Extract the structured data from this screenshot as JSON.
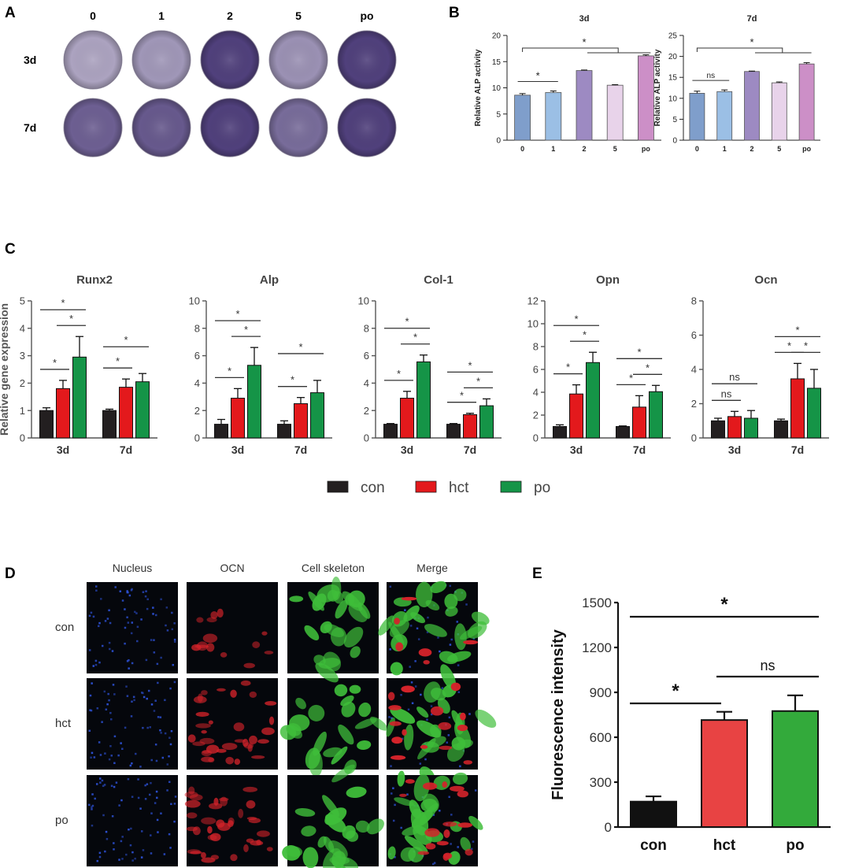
{
  "panel_labels": {
    "a": "A",
    "b": "B",
    "c": "C",
    "d": "D",
    "e": "E"
  },
  "colors": {
    "black": "#231f20",
    "red": "#e3191c",
    "green": "#159447",
    "stain_dark": "#4a3a78",
    "stain_light": "#bdb6cd",
    "b_bars": [
      "#7f9ecb",
      "#9bbfe5",
      "#9d8ac2",
      "#e8d3ea",
      "#cc8fc7"
    ],
    "e_bars": [
      "#111111",
      "#e84343",
      "#33aa3b"
    ],
    "nucleus": "#2c4fd0",
    "ocn": "#d3232a",
    "skeleton": "#3fbe3a"
  },
  "panel_a": {
    "columns": [
      "0",
      "1",
      "2",
      "5",
      "po"
    ],
    "rows": [
      "3d",
      "7d"
    ],
    "staining_levels": [
      [
        0.15,
        0.25,
        0.95,
        0.3,
        0.95
      ],
      [
        0.7,
        0.75,
        0.95,
        0.6,
        0.95
      ]
    ]
  },
  "panel_d": {
    "columns": [
      "Nucleus",
      "OCN",
      "Cell skeleton",
      "Merge"
    ],
    "rows": [
      "con",
      "hct",
      "po"
    ],
    "ocn_levels": [
      0.35,
      0.85,
      0.9
    ]
  },
  "chart_data": [
    {
      "id": "B-3d",
      "type": "bar",
      "title": "3d",
      "ylabel": "Relative ALP activity",
      "categories": [
        "0",
        "1",
        "2",
        "5",
        "po"
      ],
      "values": [
        8.6,
        9.1,
        13.3,
        10.5,
        16.1
      ],
      "errors": [
        0.3,
        0.3,
        0.1,
        0.1,
        0.2
      ],
      "ylim": [
        0,
        20
      ],
      "yticks": [
        0,
        5,
        10,
        15,
        20
      ],
      "annotations": [
        {
          "from": 0,
          "to": 1,
          "label": "*"
        },
        {
          "from": 0,
          "to": 4,
          "label": "*"
        }
      ]
    },
    {
      "id": "B-7d",
      "type": "bar",
      "title": "7d",
      "ylabel": "Relative ALP activity",
      "categories": [
        "0",
        "1",
        "2",
        "5",
        "po"
      ],
      "values": [
        11.2,
        11.6,
        16.4,
        13.7,
        18.2
      ],
      "errors": [
        0.5,
        0.4,
        0.1,
        0.2,
        0.3
      ],
      "ylim": [
        0,
        25
      ],
      "yticks": [
        0,
        5,
        10,
        15,
        20,
        25
      ],
      "annotations": [
        {
          "from": 0,
          "to": 1,
          "label": "ns"
        },
        {
          "from": 0,
          "to": 4,
          "label": "*"
        }
      ]
    },
    {
      "id": "C-Runx2",
      "type": "bar",
      "title": "Runx2",
      "ylabel": "Relative gene expression",
      "categories": [
        "3d",
        "7d"
      ],
      "series": [
        {
          "name": "con",
          "values": [
            1.0,
            1.0
          ],
          "errors": [
            0.1,
            0.05
          ]
        },
        {
          "name": "hct",
          "values": [
            1.8,
            1.85
          ],
          "errors": [
            0.3,
            0.3
          ]
        },
        {
          "name": "po",
          "values": [
            2.95,
            2.05
          ],
          "errors": [
            0.75,
            0.3
          ]
        }
      ],
      "ylim": [
        0,
        5
      ],
      "yticks": [
        0,
        1,
        2,
        3,
        4,
        5
      ],
      "annotations": [
        [
          0,
          0,
          1,
          "*"
        ],
        [
          0,
          0,
          2,
          "*"
        ],
        [
          0,
          1,
          2,
          "*"
        ],
        [
          1,
          0,
          1,
          "*"
        ],
        [
          1,
          0,
          2,
          "*"
        ]
      ]
    },
    {
      "id": "C-Alp",
      "type": "bar",
      "title": "Alp",
      "ylabel": "",
      "categories": [
        "3d",
        "7d"
      ],
      "series": [
        {
          "name": "con",
          "values": [
            1.0,
            1.0
          ],
          "errors": [
            0.35,
            0.25
          ]
        },
        {
          "name": "hct",
          "values": [
            2.9,
            2.5
          ],
          "errors": [
            0.7,
            0.45
          ]
        },
        {
          "name": "po",
          "values": [
            5.3,
            3.3
          ],
          "errors": [
            1.3,
            0.9
          ]
        }
      ],
      "ylim": [
        0,
        10
      ],
      "yticks": [
        0,
        2,
        4,
        6,
        8,
        10
      ],
      "annotations": [
        [
          0,
          0,
          1,
          "*"
        ],
        [
          0,
          0,
          2,
          "*"
        ],
        [
          0,
          1,
          2,
          "*"
        ],
        [
          1,
          0,
          1,
          "*"
        ],
        [
          1,
          0,
          2,
          "*"
        ]
      ]
    },
    {
      "id": "C-Col-1",
      "type": "bar",
      "title": "Col-1",
      "ylabel": "",
      "categories": [
        "3d",
        "7d"
      ],
      "series": [
        {
          "name": "con",
          "values": [
            1.0,
            1.0
          ],
          "errors": [
            0.05,
            0.05
          ]
        },
        {
          "name": "hct",
          "values": [
            2.9,
            1.7
          ],
          "errors": [
            0.5,
            0.1
          ]
        },
        {
          "name": "po",
          "values": [
            5.55,
            2.35
          ],
          "errors": [
            0.5,
            0.5
          ]
        }
      ],
      "ylim": [
        0,
        10
      ],
      "yticks": [
        0,
        2,
        4,
        6,
        8,
        10
      ],
      "annotations": [
        [
          0,
          0,
          1,
          "*"
        ],
        [
          0,
          0,
          2,
          "*"
        ],
        [
          0,
          1,
          2,
          "*"
        ],
        [
          1,
          0,
          1,
          "*"
        ],
        [
          1,
          0,
          2,
          "*"
        ],
        [
          1,
          1,
          2,
          "*"
        ]
      ]
    },
    {
      "id": "C-Opn",
      "type": "bar",
      "title": "Opn",
      "ylabel": "",
      "categories": [
        "3d",
        "7d"
      ],
      "series": [
        {
          "name": "con",
          "values": [
            1.0,
            1.0
          ],
          "errors": [
            0.15,
            0.05
          ]
        },
        {
          "name": "hct",
          "values": [
            3.85,
            2.7
          ],
          "errors": [
            0.8,
            1.0
          ]
        },
        {
          "name": "po",
          "values": [
            6.6,
            4.05
          ],
          "errors": [
            0.9,
            0.55
          ]
        }
      ],
      "ylim": [
        0,
        12
      ],
      "yticks": [
        0,
        2,
        4,
        6,
        8,
        10,
        12
      ],
      "annotations": [
        [
          0,
          0,
          1,
          "*"
        ],
        [
          0,
          0,
          2,
          "*"
        ],
        [
          0,
          1,
          2,
          "*"
        ],
        [
          1,
          0,
          1,
          "*"
        ],
        [
          1,
          0,
          2,
          "*"
        ],
        [
          1,
          1,
          2,
          "*"
        ]
      ]
    },
    {
      "id": "C-Ocn",
      "type": "bar",
      "title": "Ocn",
      "ylabel": "",
      "categories": [
        "3d",
        "7d"
      ],
      "series": [
        {
          "name": "con",
          "values": [
            1.0,
            1.0
          ],
          "errors": [
            0.15,
            0.1
          ]
        },
        {
          "name": "hct",
          "values": [
            1.25,
            3.45
          ],
          "errors": [
            0.3,
            0.9
          ]
        },
        {
          "name": "po",
          "values": [
            1.15,
            2.9
          ],
          "errors": [
            0.45,
            1.1
          ]
        }
      ],
      "ylim": [
        0,
        8
      ],
      "yticks": [
        0,
        2,
        4,
        6,
        8
      ],
      "annotations": [
        [
          0,
          0,
          1,
          "ns"
        ],
        [
          0,
          0,
          2,
          "ns"
        ],
        [
          1,
          0,
          1,
          "*"
        ],
        [
          1,
          0,
          2,
          "*"
        ],
        [
          1,
          1,
          2,
          "*"
        ]
      ]
    },
    {
      "id": "E",
      "type": "bar",
      "title": "",
      "ylabel": "Fluorescence intensity",
      "categories": [
        "con",
        "hct",
        "po"
      ],
      "values": [
        170,
        715,
        775
      ],
      "errors": [
        35,
        55,
        105
      ],
      "ylim": [
        0,
        1500
      ],
      "yticks": [
        0,
        300,
        600,
        900,
        1200,
        1500
      ],
      "annotations": [
        {
          "from": 0,
          "to": 1,
          "label": "*"
        },
        {
          "from": 1,
          "to": 2,
          "label": "ns"
        },
        {
          "from": 0,
          "to": 2,
          "label": "*"
        }
      ]
    }
  ],
  "legend": [
    "con",
    "hct",
    "po"
  ]
}
